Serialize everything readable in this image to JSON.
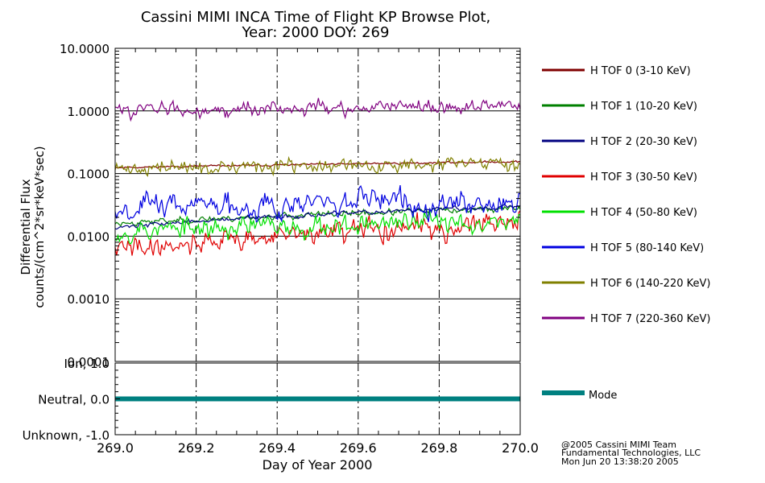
{
  "chart_data": [
    {
      "type": "line",
      "title": [
        "Cassini MIMI INCA Time of Flight KP Browse Plot,",
        "Year: 2000 DOY: 269"
      ],
      "ylabel": [
        "Differential Flux",
        "counts/(cm^2*sr*keV*sec)"
      ],
      "yscale": "log",
      "ylim": [
        0.0001,
        10
      ],
      "xlim": [
        269.0,
        270.0
      ],
      "yticks": [
        {
          "v": 10,
          "label": "10.0000"
        },
        {
          "v": 1,
          "label": "1.0000"
        },
        {
          "v": 0.1,
          "label": "0.1000"
        },
        {
          "v": 0.01,
          "label": "0.0100"
        },
        {
          "v": 0.001,
          "label": "0.0010"
        },
        {
          "v": 0.0001,
          "label": "0.0001"
        }
      ],
      "series": [
        {
          "name": "H TOF 0 (3-10 KeV)",
          "color": "#800000",
          "start": 0.125,
          "end": 0.155,
          "noise": 0.03,
          "seed": 11
        },
        {
          "name": "H TOF 1 (10-20 KeV)",
          "color": "#008000",
          "start": 0.016,
          "end": 0.028,
          "noise": 0.1,
          "seed": 23
        },
        {
          "name": "H TOF 2 (20-30 KeV)",
          "color": "#000080",
          "start": 0.014,
          "end": 0.03,
          "noise": 0.07,
          "seed": 37
        },
        {
          "name": "H TOF 3 (30-50 KeV)",
          "color": "#e00000",
          "start": 0.006,
          "end": 0.016,
          "noise": 0.35,
          "seed": 41
        },
        {
          "name": "H TOF 4 (50-80 KeV)",
          "color": "#00e000",
          "start": 0.012,
          "end": 0.018,
          "noise": 0.35,
          "seed": 53
        },
        {
          "name": "H TOF 5 (80-140 KeV)",
          "color": "#0000e0",
          "start": 0.03,
          "end": 0.036,
          "noise": 0.4,
          "seed": 67
        },
        {
          "name": "H TOF 6 (140-220 KeV)",
          "color": "#808000",
          "start": 0.12,
          "end": 0.14,
          "noise": 0.22,
          "seed": 71
        },
        {
          "name": "H TOF 7 (220-360 KeV)",
          "color": "#800080",
          "start": 1.05,
          "end": 1.15,
          "noise": 0.22,
          "seed": 83
        }
      ]
    },
    {
      "type": "line",
      "ylim": [
        -1.0,
        1.0
      ],
      "xlim": [
        269.0,
        270.0
      ],
      "yticks": [
        {
          "v": 1.0,
          "label": "Ion, 1.0"
        },
        {
          "v": 0.0,
          "label": "Neutral, 0.0"
        },
        {
          "v": -1.0,
          "label": "Unknown, -1.0"
        }
      ],
      "xlabel": "Day of Year 2000",
      "xticks": [
        "269.0",
        "269.2",
        "269.4",
        "269.6",
        "269.8",
        "270.0"
      ],
      "series": [
        {
          "name": "Mode",
          "color": "#008080",
          "x": [
            269.0,
            270.0
          ],
          "values": [
            0.0,
            0.0
          ]
        }
      ]
    }
  ],
  "credits": [
    "@2005 Cassini MIMI Team",
    "Fundamental Technologies, LLC",
    "Mon Jun 20 13:38:20 2005"
  ]
}
